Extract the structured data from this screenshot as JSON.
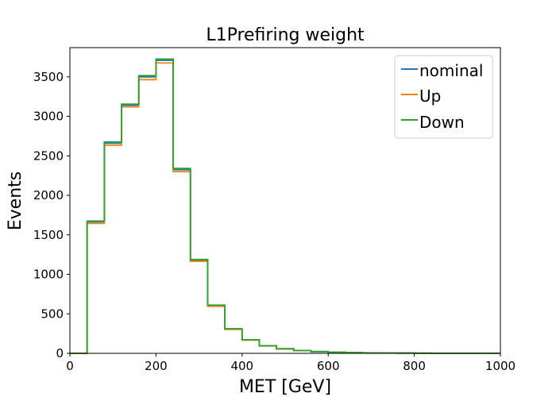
{
  "chart_data": {
    "type": "line",
    "title": "L1Prefiring weight",
    "xlabel": "MET [GeV]",
    "ylabel": "Events",
    "xlim": [
      0,
      1000
    ],
    "ylim": [
      0,
      3870
    ],
    "xticks": [
      0,
      200,
      400,
      600,
      800,
      1000
    ],
    "yticks": [
      0,
      500,
      1000,
      1500,
      2000,
      2500,
      3000,
      3500
    ],
    "bin_edges": [
      0,
      40,
      80,
      120,
      160,
      200,
      240,
      280,
      320,
      360,
      400,
      440,
      480,
      520,
      560,
      600,
      640,
      680,
      720,
      760,
      800,
      840,
      880,
      920,
      960,
      1000
    ],
    "legend_position": "top-right",
    "grid": false,
    "series": [
      {
        "name": "nominal",
        "color": "#1f77b4",
        "values": [
          0,
          1665,
          2660,
          3140,
          3500,
          3710,
          2325,
          1180,
          605,
          308,
          170,
          95,
          57,
          35,
          22,
          14,
          9,
          6,
          4,
          3,
          2,
          1,
          1,
          1,
          1
        ]
      },
      {
        "name": "Up",
        "color": "#ff7f0e",
        "values": [
          0,
          1645,
          2635,
          3120,
          3465,
          3675,
          2300,
          1165,
          596,
          303,
          167,
          93,
          56,
          34,
          21,
          14,
          9,
          6,
          4,
          3,
          2,
          1,
          1,
          1,
          1
        ]
      },
      {
        "name": "Down",
        "color": "#2ca02c",
        "values": [
          0,
          1675,
          2675,
          3155,
          3515,
          3725,
          2340,
          1188,
          610,
          311,
          172,
          96,
          58,
          35,
          22,
          14,
          9,
          6,
          4,
          3,
          2,
          1,
          1,
          1,
          1
        ]
      }
    ]
  }
}
